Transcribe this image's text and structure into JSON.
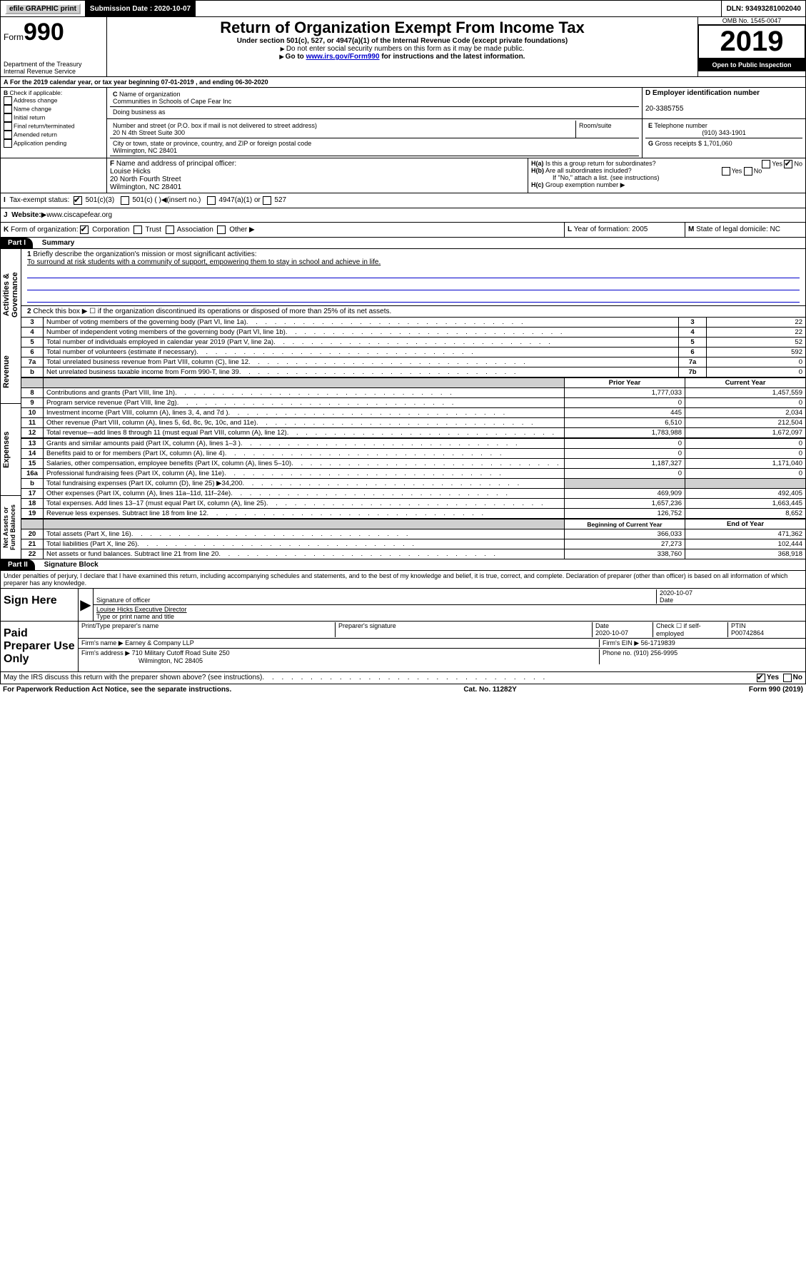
{
  "topbar": {
    "efile": "efile GRAPHIC print",
    "submission": "Submission Date : 2020-10-07",
    "dln": "DLN: 93493281002040"
  },
  "header": {
    "form_label": "Form",
    "form_number": "990",
    "title": "Return of Organization Exempt From Income Tax",
    "subtitle": "Under section 501(c), 527, or 4947(a)(1) of the Internal Revenue Code (except private foundations)",
    "note1": "Do not enter social security numbers on this form as it may be made public.",
    "note2_a": "Go to ",
    "note2_link": "www.irs.gov/Form990",
    "note2_b": " for instructions and the latest information.",
    "dept": "Department of the Treasury\nInternal Revenue Service",
    "omb": "OMB No. 1545-0047",
    "year": "2019",
    "inspection": "Open to Public Inspection"
  },
  "lineA": "For the 2019 calendar year, or tax year beginning 07-01-2019    , and ending 06-30-2020",
  "boxB": {
    "label": "Check if applicable:",
    "items": [
      "Address change",
      "Name change",
      "Initial return",
      "Final return/terminated",
      "Amended return",
      "Application pending"
    ]
  },
  "boxC": {
    "name_label": "Name of organization",
    "name": "Communities in Schools of Cape Fear Inc",
    "dba_label": "Doing business as",
    "addr_label": "Number and street (or P.O. box if mail is not delivered to street address)",
    "room_label": "Room/suite",
    "addr": "20 N 4th Street Suite 300",
    "city_label": "City or town, state or province, country, and ZIP or foreign postal code",
    "city": "Wilmington, NC  28401"
  },
  "boxD": {
    "label": "Employer identification number",
    "value": "20-3385755"
  },
  "boxE": {
    "label": "Telephone number",
    "value": "(910) 343-1901"
  },
  "boxG": {
    "label": "Gross receipts $",
    "value": "1,701,060"
  },
  "boxF": {
    "label": "Name and address of principal officer:",
    "name": "Louise Hicks",
    "addr1": "20 North Fourth Street",
    "addr2": "Wilmington, NC  28401"
  },
  "boxH": {
    "a": "Is this a group return for subordinates?",
    "b": "Are all subordinates included?",
    "b_note": "If \"No,\" attach a list. (see instructions)",
    "c": "Group exemption number"
  },
  "taxexempt": {
    "label": "Tax-exempt status:",
    "opt1": "501(c)(3)",
    "opt2": "501(c) (   )",
    "opt2_note": "(insert no.)",
    "opt3": "4947(a)(1) or",
    "opt4": "527"
  },
  "website": {
    "label": "Website:",
    "value": "www.ciscapefear.org"
  },
  "boxK": {
    "label": "Form of organization:",
    "opts": [
      "Corporation",
      "Trust",
      "Association",
      "Other"
    ]
  },
  "boxL": {
    "label": "Year of formation:",
    "value": "2005"
  },
  "boxM": {
    "label": "State of legal domicile:",
    "value": "NC"
  },
  "partI": {
    "header": "Part I",
    "title": "Summary",
    "line1_label": "Briefly describe the organization's mission or most significant activities:",
    "line1_text": "To surround at risk students with a community of support, empowering them to stay in school and achieve in life.",
    "line2": "Check this box ▶ ☐  if the organization discontinued its operations or disposed of more than 25% of its net assets.",
    "section_gov": "Activities & Governance",
    "section_rev": "Revenue",
    "section_exp": "Expenses",
    "section_net": "Net Assets or Fund Balances",
    "lines_gov": [
      {
        "n": "3",
        "desc": "Number of voting members of the governing body (Part VI, line 1a)",
        "box": "3",
        "val": "22"
      },
      {
        "n": "4",
        "desc": "Number of independent voting members of the governing body (Part VI, line 1b)",
        "box": "4",
        "val": "22"
      },
      {
        "n": "5",
        "desc": "Total number of individuals employed in calendar year 2019 (Part V, line 2a)",
        "box": "5",
        "val": "52"
      },
      {
        "n": "6",
        "desc": "Total number of volunteers (estimate if necessary)",
        "box": "6",
        "val": "592"
      },
      {
        "n": "7a",
        "desc": "Total unrelated business revenue from Part VIII, column (C), line 12",
        "box": "7a",
        "val": "0"
      },
      {
        "n": "b",
        "desc": "Net unrelated business taxable income from Form 990-T, line 39",
        "box": "7b",
        "val": "0"
      }
    ],
    "cols": {
      "prior": "Prior Year",
      "current": "Current Year"
    },
    "lines_rev": [
      {
        "n": "8",
        "desc": "Contributions and grants (Part VIII, line 1h)",
        "prior": "1,777,033",
        "curr": "1,457,559"
      },
      {
        "n": "9",
        "desc": "Program service revenue (Part VIII, line 2g)",
        "prior": "0",
        "curr": "0"
      },
      {
        "n": "10",
        "desc": "Investment income (Part VIII, column (A), lines 3, 4, and 7d )",
        "prior": "445",
        "curr": "2,034"
      },
      {
        "n": "11",
        "desc": "Other revenue (Part VIII, column (A), lines 5, 6d, 8c, 9c, 10c, and 11e)",
        "prior": "6,510",
        "curr": "212,504"
      },
      {
        "n": "12",
        "desc": "Total revenue—add lines 8 through 11 (must equal Part VIII, column (A), line 12)",
        "prior": "1,783,988",
        "curr": "1,672,097"
      }
    ],
    "lines_exp": [
      {
        "n": "13",
        "desc": "Grants and similar amounts paid (Part IX, column (A), lines 1–3 )",
        "prior": "0",
        "curr": "0"
      },
      {
        "n": "14",
        "desc": "Benefits paid to or for members (Part IX, column (A), line 4)",
        "prior": "0",
        "curr": "0"
      },
      {
        "n": "15",
        "desc": "Salaries, other compensation, employee benefits (Part IX, column (A), lines 5–10)",
        "prior": "1,187,327",
        "curr": "1,171,040"
      },
      {
        "n": "16a",
        "desc": "Professional fundraising fees (Part IX, column (A), line 11e)",
        "prior": "0",
        "curr": "0"
      },
      {
        "n": "b",
        "desc": "Total fundraising expenses (Part IX, column (D), line 25) ▶34,200",
        "prior": "",
        "curr": "",
        "gray": true
      },
      {
        "n": "17",
        "desc": "Other expenses (Part IX, column (A), lines 11a–11d, 11f–24e)",
        "prior": "469,909",
        "curr": "492,405"
      },
      {
        "n": "18",
        "desc": "Total expenses. Add lines 13–17 (must equal Part IX, column (A), line 25)",
        "prior": "1,657,236",
        "curr": "1,663,445"
      },
      {
        "n": "19",
        "desc": "Revenue less expenses. Subtract line 18 from line 12",
        "prior": "126,752",
        "curr": "8,652"
      }
    ],
    "cols2": {
      "begin": "Beginning of Current Year",
      "end": "End of Year"
    },
    "lines_net": [
      {
        "n": "20",
        "desc": "Total assets (Part X, line 16)",
        "prior": "366,033",
        "curr": "471,362"
      },
      {
        "n": "21",
        "desc": "Total liabilities (Part X, line 26)",
        "prior": "27,273",
        "curr": "102,444"
      },
      {
        "n": "22",
        "desc": "Net assets or fund balances. Subtract line 21 from line 20",
        "prior": "338,760",
        "curr": "368,918"
      }
    ]
  },
  "partII": {
    "header": "Part II",
    "title": "Signature Block",
    "perjury": "Under penalties of perjury, I declare that I have examined this return, including accompanying schedules and statements, and to the best of my knowledge and belief, it is true, correct, and complete. Declaration of preparer (other than officer) is based on all information of which preparer has any knowledge.",
    "sign_here": "Sign Here",
    "sig_officer": "Signature of officer",
    "sig_date": "Date",
    "date_val": "2020-10-07",
    "name_title": "Louise Hicks Executive Director",
    "name_label": "Type or print name and title",
    "paid_prep": "Paid Preparer Use Only",
    "prep_name_label": "Print/Type preparer's name",
    "prep_sig_label": "Preparer's signature",
    "prep_date_label": "Date",
    "prep_date": "2020-10-07",
    "check_label": "Check ☐ if self-employed",
    "ptin_label": "PTIN",
    "ptin": "P00742864",
    "firm_name_label": "Firm's name   ▶",
    "firm_name": "Earney & Company LLP",
    "firm_ein_label": "Firm's EIN ▶",
    "firm_ein": "56-1719839",
    "firm_addr_label": "Firm's address ▶",
    "firm_addr": "710 Military Cutoff Road Suite 250",
    "firm_city": "Wilmington, NC  28405",
    "phone_label": "Phone no.",
    "phone": "(910) 256-9995",
    "discuss": "May the IRS discuss this return with the preparer shown above? (see instructions)",
    "yes": "Yes",
    "no": "No"
  },
  "footer": {
    "left": "For Paperwork Reduction Act Notice, see the separate instructions.",
    "center": "Cat. No. 11282Y",
    "right": "Form 990 (2019)"
  }
}
